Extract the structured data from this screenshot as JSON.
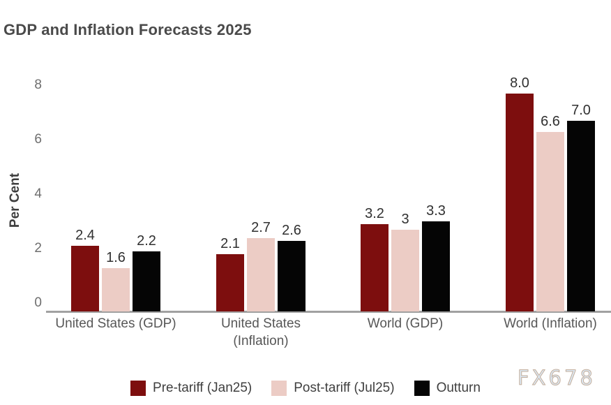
{
  "chart_data": {
    "type": "bar",
    "title": "GDP and Inflation Forecasts 2025",
    "ylabel": "Per Cent",
    "xlabel": "",
    "ylim": [
      0,
      8
    ],
    "yticks": [
      0,
      2,
      4,
      6,
      8
    ],
    "grid": false,
    "legend_position": "bottom",
    "categories": [
      "United States (GDP)",
      "United States (Inflation)",
      "World (GDP)",
      "World (Inflation)"
    ],
    "categories_display": [
      "United States (GDP)",
      "United States\n(Inflation)",
      "World (GDP)",
      "World (Inflation)"
    ],
    "series": [
      {
        "name": "Pre-tariff (Jan25)",
        "color": "#7d0e0e",
        "values": [
          2.4,
          2.1,
          3.2,
          8.0
        ],
        "value_labels": [
          "2.4",
          "2.1",
          "3.2",
          "8.0"
        ]
      },
      {
        "name": "Post-tariff (Jul25)",
        "color": "#ecccc5",
        "values": [
          1.6,
          2.7,
          3.0,
          6.6
        ],
        "value_labels": [
          "1.6",
          "2.7",
          "3",
          "6.6"
        ]
      },
      {
        "name": "Outturn",
        "color": "#050505",
        "values": [
          2.2,
          2.6,
          3.3,
          7.0
        ],
        "value_labels": [
          "2.2",
          "2.6",
          "3.3",
          "7.0"
        ]
      }
    ]
  },
  "watermark": "FX678"
}
